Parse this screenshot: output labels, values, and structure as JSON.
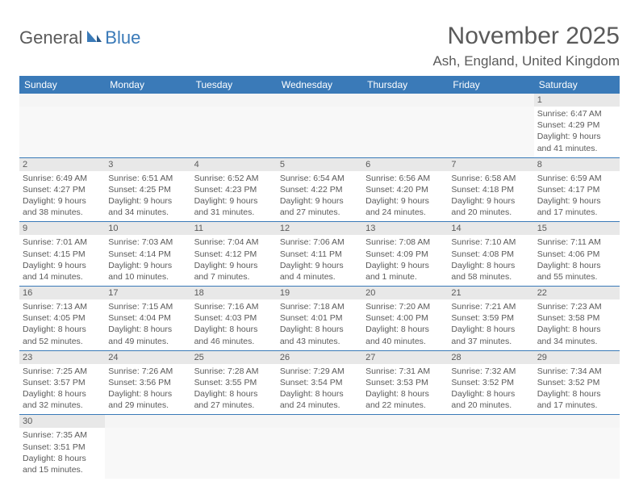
{
  "logo": {
    "text1": "General",
    "text2": "Blue"
  },
  "title": "November 2025",
  "location": "Ash, England, United Kingdom",
  "headers": [
    "Sunday",
    "Monday",
    "Tuesday",
    "Wednesday",
    "Thursday",
    "Friday",
    "Saturday"
  ],
  "colors": {
    "header_bg": "#3a7ab8",
    "header_fg": "#ffffff",
    "daynum_bg": "#e8e8e8",
    "text": "#5a5a5a",
    "row_border": "#3a7ab8"
  },
  "weeks": [
    [
      null,
      null,
      null,
      null,
      null,
      null,
      {
        "n": "1",
        "sunrise": "6:47 AM",
        "sunset": "4:29 PM",
        "daylight": "9 hours and 41 minutes."
      }
    ],
    [
      {
        "n": "2",
        "sunrise": "6:49 AM",
        "sunset": "4:27 PM",
        "daylight": "9 hours and 38 minutes."
      },
      {
        "n": "3",
        "sunrise": "6:51 AM",
        "sunset": "4:25 PM",
        "daylight": "9 hours and 34 minutes."
      },
      {
        "n": "4",
        "sunrise": "6:52 AM",
        "sunset": "4:23 PM",
        "daylight": "9 hours and 31 minutes."
      },
      {
        "n": "5",
        "sunrise": "6:54 AM",
        "sunset": "4:22 PM",
        "daylight": "9 hours and 27 minutes."
      },
      {
        "n": "6",
        "sunrise": "6:56 AM",
        "sunset": "4:20 PM",
        "daylight": "9 hours and 24 minutes."
      },
      {
        "n": "7",
        "sunrise": "6:58 AM",
        "sunset": "4:18 PM",
        "daylight": "9 hours and 20 minutes."
      },
      {
        "n": "8",
        "sunrise": "6:59 AM",
        "sunset": "4:17 PM",
        "daylight": "9 hours and 17 minutes."
      }
    ],
    [
      {
        "n": "9",
        "sunrise": "7:01 AM",
        "sunset": "4:15 PM",
        "daylight": "9 hours and 14 minutes."
      },
      {
        "n": "10",
        "sunrise": "7:03 AM",
        "sunset": "4:14 PM",
        "daylight": "9 hours and 10 minutes."
      },
      {
        "n": "11",
        "sunrise": "7:04 AM",
        "sunset": "4:12 PM",
        "daylight": "9 hours and 7 minutes."
      },
      {
        "n": "12",
        "sunrise": "7:06 AM",
        "sunset": "4:11 PM",
        "daylight": "9 hours and 4 minutes."
      },
      {
        "n": "13",
        "sunrise": "7:08 AM",
        "sunset": "4:09 PM",
        "daylight": "9 hours and 1 minute."
      },
      {
        "n": "14",
        "sunrise": "7:10 AM",
        "sunset": "4:08 PM",
        "daylight": "8 hours and 58 minutes."
      },
      {
        "n": "15",
        "sunrise": "7:11 AM",
        "sunset": "4:06 PM",
        "daylight": "8 hours and 55 minutes."
      }
    ],
    [
      {
        "n": "16",
        "sunrise": "7:13 AM",
        "sunset": "4:05 PM",
        "daylight": "8 hours and 52 minutes."
      },
      {
        "n": "17",
        "sunrise": "7:15 AM",
        "sunset": "4:04 PM",
        "daylight": "8 hours and 49 minutes."
      },
      {
        "n": "18",
        "sunrise": "7:16 AM",
        "sunset": "4:03 PM",
        "daylight": "8 hours and 46 minutes."
      },
      {
        "n": "19",
        "sunrise": "7:18 AM",
        "sunset": "4:01 PM",
        "daylight": "8 hours and 43 minutes."
      },
      {
        "n": "20",
        "sunrise": "7:20 AM",
        "sunset": "4:00 PM",
        "daylight": "8 hours and 40 minutes."
      },
      {
        "n": "21",
        "sunrise": "7:21 AM",
        "sunset": "3:59 PM",
        "daylight": "8 hours and 37 minutes."
      },
      {
        "n": "22",
        "sunrise": "7:23 AM",
        "sunset": "3:58 PM",
        "daylight": "8 hours and 34 minutes."
      }
    ],
    [
      {
        "n": "23",
        "sunrise": "7:25 AM",
        "sunset": "3:57 PM",
        "daylight": "8 hours and 32 minutes."
      },
      {
        "n": "24",
        "sunrise": "7:26 AM",
        "sunset": "3:56 PM",
        "daylight": "8 hours and 29 minutes."
      },
      {
        "n": "25",
        "sunrise": "7:28 AM",
        "sunset": "3:55 PM",
        "daylight": "8 hours and 27 minutes."
      },
      {
        "n": "26",
        "sunrise": "7:29 AM",
        "sunset": "3:54 PM",
        "daylight": "8 hours and 24 minutes."
      },
      {
        "n": "27",
        "sunrise": "7:31 AM",
        "sunset": "3:53 PM",
        "daylight": "8 hours and 22 minutes."
      },
      {
        "n": "28",
        "sunrise": "7:32 AM",
        "sunset": "3:52 PM",
        "daylight": "8 hours and 20 minutes."
      },
      {
        "n": "29",
        "sunrise": "7:34 AM",
        "sunset": "3:52 PM",
        "daylight": "8 hours and 17 minutes."
      }
    ],
    [
      {
        "n": "30",
        "sunrise": "7:35 AM",
        "sunset": "3:51 PM",
        "daylight": "8 hours and 15 minutes."
      },
      null,
      null,
      null,
      null,
      null,
      null
    ]
  ]
}
